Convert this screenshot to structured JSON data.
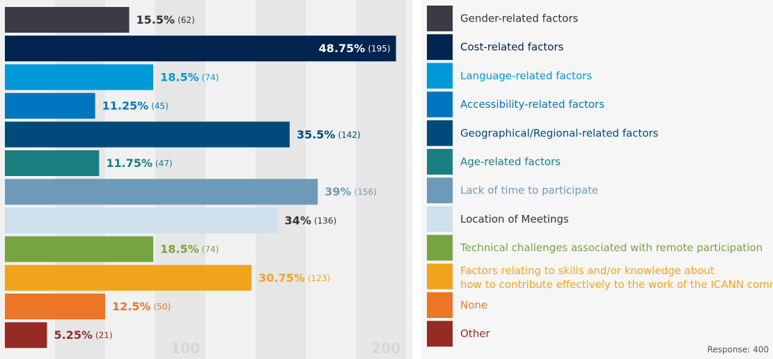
{
  "chart_data": {
    "type": "hbar",
    "categories": [
      "Gender-related factors",
      "Cost-related factors",
      "Language-related factors",
      "Accessibility-related factors",
      "Geographical/Regional-related factors",
      "Age-related factors",
      "Lack of time to participate",
      "Location of Meetings",
      "Technical challenges associated with remote participation",
      "Factors relating to skills and/or knowledge about how to contribute effectively to the work of the ICANN community",
      "None",
      "Other"
    ],
    "values": [
      62,
      195,
      74,
      45,
      142,
      47,
      156,
      136,
      74,
      123,
      50,
      21
    ],
    "value_labels": [
      "(62)",
      "(195)",
      "(74)",
      "(45)",
      "(142)",
      "(47)",
      "(156)",
      "(136)",
      "(74)",
      "(123)",
      "(50)",
      "(21)"
    ],
    "percent_labels": [
      "15.5%",
      "48.75%",
      "18.5%",
      "11.25%",
      "35.5%",
      "11.75%",
      "39%",
      "34%",
      "18.5%",
      "30.75%",
      "12.5%",
      "5.25%"
    ],
    "colors": [
      "#3a3b45",
      "#00234f",
      "#0099d8",
      "#0076c0",
      "#004a7c",
      "#1a7f80",
      "#6d9ab8",
      "#cfe0ec",
      "#76a440",
      "#f2a31e",
      "#ec7625",
      "#962b24"
    ],
    "label_colors": [
      "#333333",
      "#00234f",
      "#0099d8",
      "#0076c0",
      "#004a7c",
      "#1a7f80",
      "#6d9ab8",
      "#333333",
      "#76a440",
      "#f2a31e",
      "#ec7625",
      "#962b24"
    ],
    "xlim": [
      0,
      200
    ],
    "xticks": [
      100,
      200
    ],
    "note": "Response: 400"
  }
}
